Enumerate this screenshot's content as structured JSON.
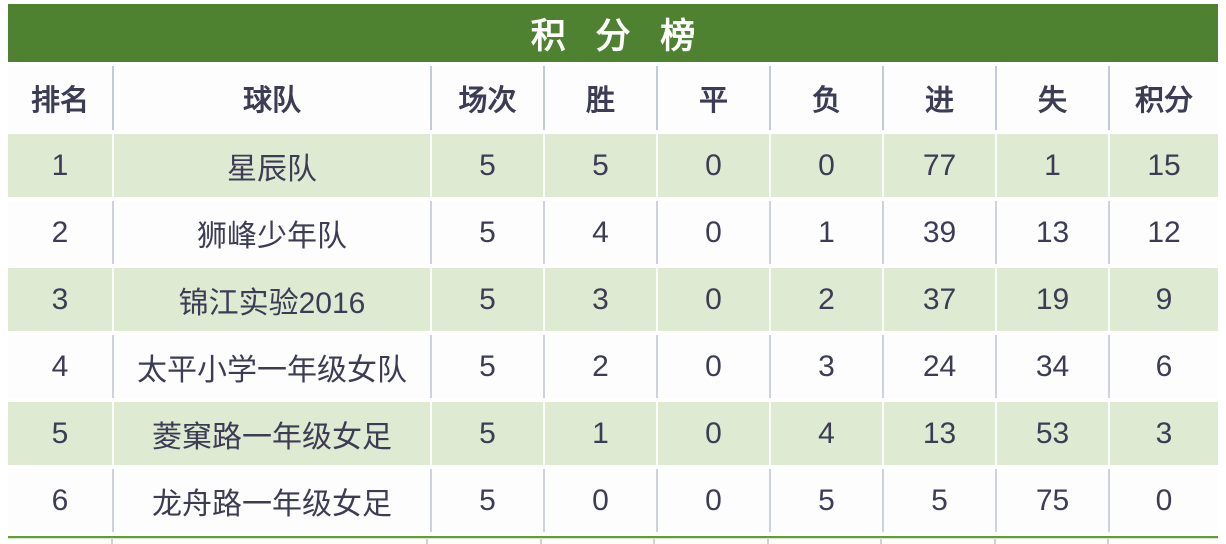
{
  "title": "积 分 榜",
  "colors": {
    "title_bar_green": "#4e8230",
    "row_green": "#dfead3",
    "row_white": "#fdfdfe",
    "text_dark": "#3d3c55",
    "separator_gray": "#cdd2dd",
    "bottom_line_green": "#639a3c"
  },
  "chart_data": {
    "type": "table",
    "title": "积 分 榜",
    "columns": [
      "排名",
      "球队",
      "场次",
      "胜",
      "平",
      "负",
      "进",
      "失",
      "积分"
    ],
    "rows": [
      [
        "1",
        "星辰队",
        "5",
        "5",
        "0",
        "0",
        "77",
        "1",
        "15"
      ],
      [
        "2",
        "狮峰少年队",
        "5",
        "4",
        "0",
        "1",
        "39",
        "13",
        "12"
      ],
      [
        "3",
        "锦江实验2016",
        "5",
        "3",
        "0",
        "2",
        "37",
        "19",
        "9"
      ],
      [
        "4",
        "太平小学一年级女队",
        "5",
        "2",
        "0",
        "3",
        "24",
        "34",
        "6"
      ],
      [
        "5",
        "菱窠路一年级女足",
        "5",
        "1",
        "0",
        "4",
        "13",
        "53",
        "3"
      ],
      [
        "6",
        "龙舟路一年级女足",
        "5",
        "0",
        "0",
        "5",
        "5",
        "75",
        "0"
      ]
    ]
  }
}
